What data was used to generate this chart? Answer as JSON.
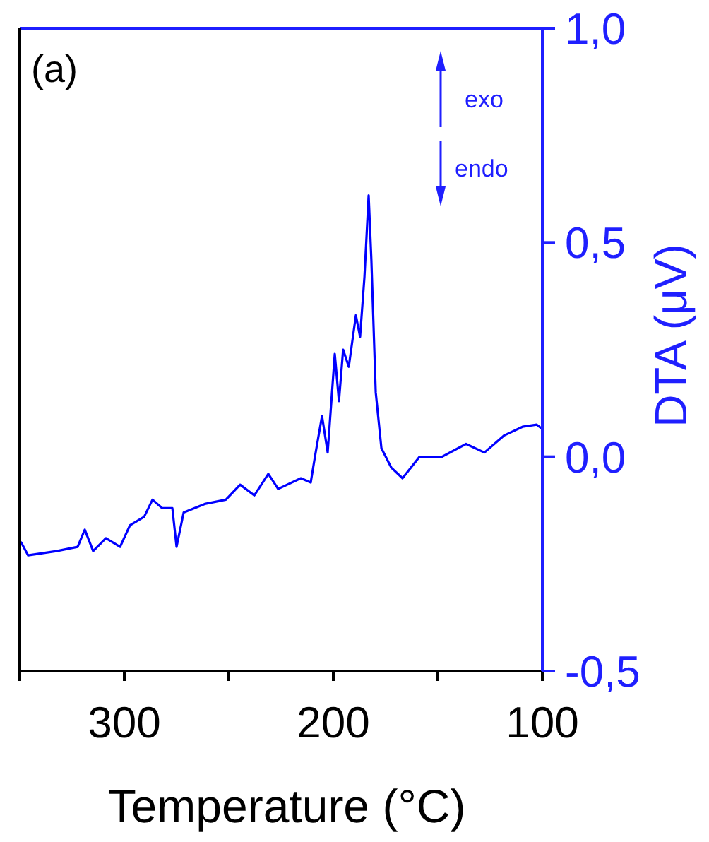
{
  "chart_data": {
    "type": "line",
    "xlabel": "Temperature (°C)",
    "ylabel": "DTA (μV)",
    "xlim": [
      350,
      100
    ],
    "xticks": [
      {
        "value": 350,
        "label": null
      },
      300,
      {
        "value": 250,
        "label": null
      },
      200,
      {
        "value": 150,
        "label": null
      },
      100
    ],
    "ylim": [
      -0.5,
      1.0
    ],
    "yticks": [
      {
        "value": -0.5,
        "label": "-0,5"
      },
      {
        "value": 0,
        "label": "0,0"
      },
      {
        "value": 0.5,
        "label": "0,5"
      },
      {
        "value": 1,
        "label": "1,0"
      }
    ],
    "grid": false,
    "marker": "none",
    "line_style": "solid",
    "annotations": [
      "(a)",
      "exo",
      "endo"
    ],
    "series": [
      {
        "color": "#0000ff",
        "x": [
          349.3,
          346,
          332.4,
          322.3,
          318.9,
          314.9,
          308.8,
          302,
          297.3,
          290.5,
          286.5,
          281.8,
          277,
          275,
          271.6,
          261.5,
          251.4,
          244.6,
          237.8,
          231.1,
          227.7,
          226.4,
          215.5,
          210.8,
          208.8,
          205.4,
          202.7,
          199.3,
          197.3,
          195.3,
          192.6,
          189.2,
          187.2,
          185.1,
          183.1,
          181.8,
          179.7,
          177,
          172.3,
          166.9,
          158.8,
          148,
          136.5,
          127.7,
          118.2,
          109.5,
          102.7,
          100
        ],
        "values": [
          -0.2,
          -0.23,
          -0.22,
          -0.21,
          -0.17,
          -0.22,
          -0.19,
          -0.21,
          -0.16,
          -0.14,
          -0.1,
          -0.12,
          -0.12,
          -0.21,
          -0.13,
          -0.11,
          -0.1,
          -0.065,
          -0.09,
          -0.04,
          -0.065,
          -0.075,
          -0.05,
          -0.06,
          0,
          0.095,
          0.01,
          0.24,
          0.13,
          0.25,
          0.21,
          0.33,
          0.28,
          0.42,
          0.61,
          0.46,
          0.15,
          0.02,
          -0.025,
          -0.05,
          0,
          0,
          0.03,
          0.01,
          0.05,
          0.07,
          0.075,
          0.065
        ]
      }
    ]
  }
}
